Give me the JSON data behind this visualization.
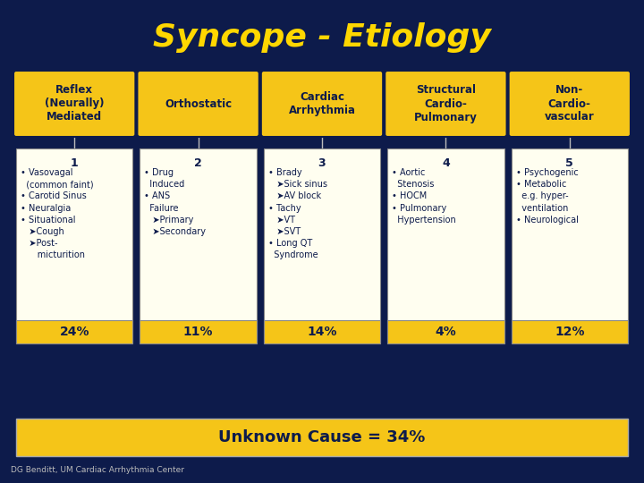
{
  "title": "Syncope - Etiology",
  "bg_color": "#0d1b4b",
  "title_color": "#ffd700",
  "title_fontsize": 26,
  "header_bg": "#f5c518",
  "header_text_color": "#0d1b4b",
  "body_bg": "#fffef0",
  "body_text_color": "#0d1b4b",
  "pct_bg": "#f5c518",
  "pct_text_color": "#0d1b4b",
  "unknown_bg": "#f5c518",
  "unknown_text": "Unknown Cause = 34%",
  "footer_text": "DG Benditt, UM Cardiac Arrhythmia Center",
  "columns": [
    {
      "header": "Reflex\n(Neurally)\nMediated",
      "number": "1",
      "body": "• Vasovagal\n  (common faint)\n• Carotid Sinus\n• Neuralgia\n• Situational\n   ➤Cough\n   ➤Post-\n      micturition",
      "pct": "24%"
    },
    {
      "header": "Orthostatic",
      "number": "2",
      "body": "• Drug\n  Induced\n• ANS\n  Failure\n   ➤Primary\n   ➤Secondary",
      "pct": "11%"
    },
    {
      "header": "Cardiac\nArrhythmia",
      "number": "3",
      "body": "• Brady\n   ➤Sick sinus\n   ➤AV block\n• Tachy\n   ➤VT\n   ➤SVT\n• Long QT\n  Syndrome",
      "pct": "14%"
    },
    {
      "header": "Structural\nCardio-\nPulmonary",
      "number": "4",
      "body": "• Aortic\n  Stenosis\n• HOCM\n• Pulmonary\n  Hypertension",
      "pct": "4%"
    },
    {
      "header": "Non-\nCardio-\nvascular",
      "number": "5",
      "body": "• Psychogenic\n• Metabolic\n  e.g. hyper-\n  ventilation\n• Neurological",
      "pct": "12%"
    }
  ]
}
